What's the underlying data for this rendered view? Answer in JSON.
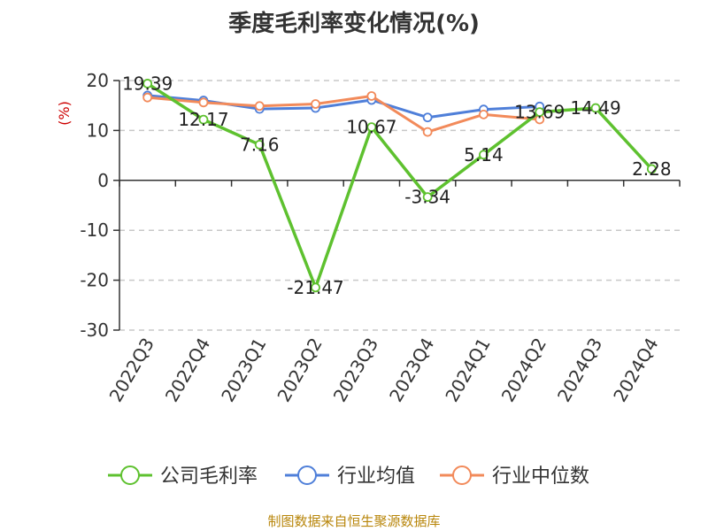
{
  "chart_data": {
    "type": "line",
    "title": "季度毛利率变化情况(%)",
    "ylabel": "(%)",
    "categories": [
      "2022Q3",
      "2022Q4",
      "2023Q1",
      "2023Q2",
      "2023Q3",
      "2023Q4",
      "2024Q1",
      "2024Q2",
      "2024Q3",
      "2024Q4"
    ],
    "ylim": [
      -30,
      20
    ],
    "yticks": [
      20,
      10,
      0,
      -10,
      -20,
      -30
    ],
    "grid": true,
    "legend_position": "bottom",
    "series": [
      {
        "name": "公司毛利率",
        "color": "#5ec12f",
        "values": [
          19.39,
          12.17,
          7.16,
          -21.47,
          10.67,
          -3.34,
          5.14,
          13.69,
          14.49,
          2.28
        ],
        "labels": [
          "19.39",
          "12.17",
          "7.16",
          "-21.47",
          "10.67",
          "-3.34",
          "5.14",
          "13.69",
          "14.49",
          "2.28"
        ]
      },
      {
        "name": "行业均值",
        "color": "#4f7fd9",
        "values": [
          17.0,
          16.0,
          14.3,
          14.5,
          16.1,
          12.6,
          14.2,
          14.8,
          null,
          null
        ]
      },
      {
        "name": "行业中位数",
        "color": "#f28a5a",
        "values": [
          16.6,
          15.6,
          14.9,
          15.3,
          16.9,
          9.7,
          13.2,
          12.2,
          null,
          null
        ]
      }
    ]
  },
  "footer": {
    "source": "制图数据来自恒生聚源数据库"
  }
}
